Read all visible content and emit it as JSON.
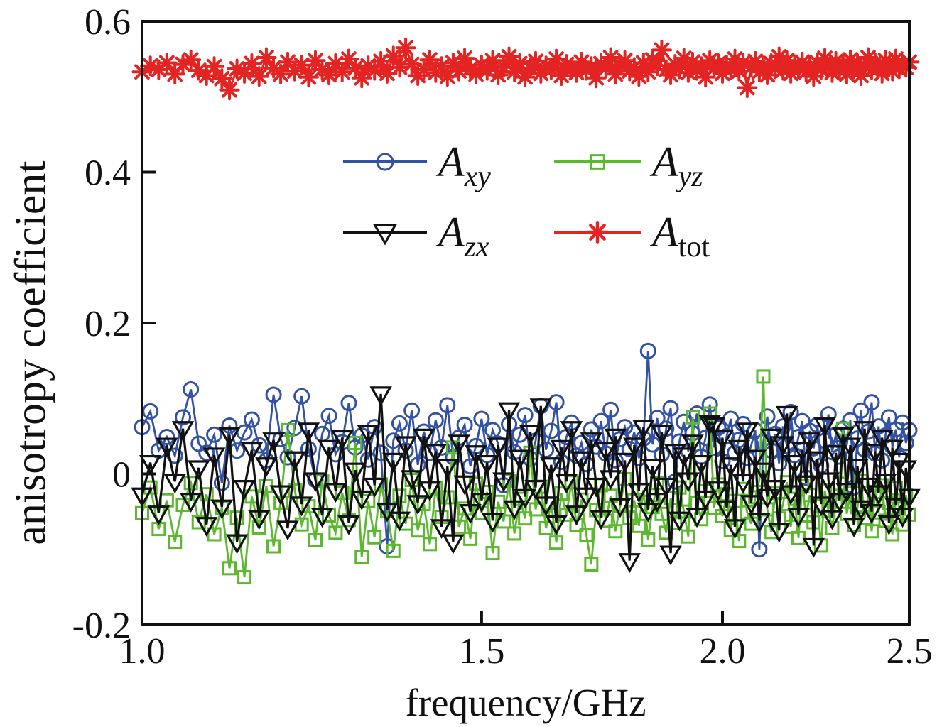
{
  "figure": {
    "background": "#ffffff",
    "frame_color": "#111111"
  },
  "chart_data": {
    "type": "line",
    "title": "",
    "xlabel": "frequency/GHz",
    "ylabel": "anisotropy coefficient",
    "x_scale": "log",
    "xlim": [
      1.0,
      2.5
    ],
    "ylim": [
      -0.2,
      0.6
    ],
    "x_tick_values": [
      1.0,
      1.5,
      2.0,
      2.5
    ],
    "x_tick_labels": [
      "1.0",
      "1.5",
      "2.0",
      "2.5"
    ],
    "y_tick_values": [
      -0.2,
      0,
      0.2,
      0.4,
      0.6
    ],
    "y_tick_labels": [
      "-0.2",
      "0",
      "0.2",
      "0.4",
      "0.6"
    ],
    "grid": false,
    "legend_position": "inside-upper-center",
    "legend_columns": 2,
    "x": [
      1.0,
      1.01,
      1.02,
      1.03,
      1.04,
      1.05,
      1.06,
      1.07,
      1.08,
      1.09,
      1.1,
      1.11,
      1.12,
      1.13,
      1.14,
      1.15,
      1.16,
      1.17,
      1.18,
      1.19,
      1.2,
      1.21,
      1.22,
      1.23,
      1.24,
      1.25,
      1.26,
      1.27,
      1.28,
      1.29,
      1.3,
      1.31,
      1.32,
      1.33,
      1.34,
      1.35,
      1.36,
      1.37,
      1.38,
      1.39,
      1.4,
      1.41,
      1.42,
      1.43,
      1.44,
      1.45,
      1.46,
      1.47,
      1.48,
      1.49,
      1.5,
      1.51,
      1.52,
      1.53,
      1.54,
      1.55,
      1.56,
      1.57,
      1.58,
      1.59,
      1.6,
      1.61,
      1.62,
      1.63,
      1.64,
      1.65,
      1.66,
      1.67,
      1.68,
      1.69,
      1.7,
      1.71,
      1.72,
      1.73,
      1.74,
      1.75,
      1.76,
      1.77,
      1.78,
      1.79,
      1.8,
      1.81,
      1.82,
      1.83,
      1.84,
      1.85,
      1.86,
      1.87,
      1.88,
      1.89,
      1.9,
      1.91,
      1.92,
      1.93,
      1.94,
      1.95,
      1.96,
      1.97,
      1.98,
      1.99,
      2.0,
      2.01,
      2.02,
      2.03,
      2.04,
      2.05,
      2.06,
      2.07,
      2.08,
      2.09,
      2.1,
      2.11,
      2.12,
      2.13,
      2.14,
      2.15,
      2.16,
      2.17,
      2.18,
      2.19,
      2.2,
      2.21,
      2.22,
      2.23,
      2.24,
      2.25,
      2.26,
      2.27,
      2.28,
      2.29,
      2.3,
      2.31,
      2.32,
      2.33,
      2.34,
      2.35,
      2.36,
      2.37,
      2.38,
      2.39,
      2.4,
      2.41,
      2.42,
      2.43,
      2.44,
      2.45,
      2.46,
      2.47,
      2.48,
      2.49,
      2.5
    ],
    "series": [
      {
        "name": "A_xy",
        "legend_main": "A",
        "legend_sub": "xy",
        "sub_italic": true,
        "color": "#3352a4",
        "marker": "circle",
        "values": [
          0.062,
          0.083,
          0.031,
          0.049,
          0.024,
          0.075,
          0.112,
          0.04,
          0.028,
          0.052,
          -0.012,
          0.064,
          0.031,
          0.055,
          0.072,
          0.038,
          0.018,
          0.105,
          0.046,
          0.022,
          0.061,
          0.103,
          0.033,
          -0.008,
          0.053,
          0.077,
          0.026,
          0.042,
          0.094,
          0.035,
          0.051,
          0.019,
          0.062,
          0.028,
          -0.096,
          0.044,
          0.067,
          0.031,
          0.084,
          0.012,
          0.056,
          0.028,
          0.071,
          0.035,
          0.091,
          0.022,
          0.048,
          0.065,
          0.01,
          0.037,
          0.073,
          0.025,
          0.058,
          0.04,
          -0.015,
          0.066,
          0.029,
          0.052,
          0.078,
          0.02,
          0.044,
          0.09,
          0.032,
          0.057,
          0.095,
          0.016,
          0.049,
          0.068,
          0.024,
          0.041,
          0.013,
          0.059,
          0.036,
          0.07,
          0.027,
          0.085,
          0.018,
          0.046,
          0.062,
          0.033,
          0.055,
          0.021,
          0.047,
          0.163,
          0.039,
          0.074,
          0.026,
          0.06,
          0.087,
          -0.01,
          0.043,
          0.069,
          0.03,
          0.054,
          0.08,
          0.023,
          0.048,
          0.092,
          0.035,
          0.061,
          0.017,
          0.05,
          0.073,
          0.028,
          0.045,
          0.066,
          0.021,
          0.038,
          0.058,
          -0.1,
          0.042,
          0.076,
          0.031,
          0.053,
          0.014,
          0.063,
          0.037,
          0.082,
          0.025,
          0.049,
          0.07,
          -0.005,
          0.057,
          0.034,
          0.065,
          0.011,
          0.044,
          0.079,
          0.029,
          0.052,
          0.023,
          0.06,
          0.038,
          0.071,
          -0.018,
          0.047,
          0.084,
          0.032,
          0.056,
          0.095,
          0.027,
          0.063,
          0.018,
          0.051,
          0.075,
          0.036,
          0.059,
          0.022,
          0.068,
          0.041,
          0.058
        ]
      },
      {
        "name": "A_yz",
        "legend_main": "A",
        "legend_sub": "yz",
        "sub_italic": true,
        "color": "#5cb82e",
        "marker": "square",
        "values": [
          -0.052,
          -0.018,
          -0.073,
          -0.035,
          -0.09,
          -0.041,
          -0.012,
          -0.064,
          -0.027,
          -0.08,
          -0.045,
          -0.125,
          -0.058,
          -0.137,
          -0.03,
          -0.071,
          -0.016,
          -0.096,
          -0.038,
          0.058,
          -0.022,
          -0.067,
          -0.043,
          -0.088,
          -0.01,
          -0.055,
          -0.078,
          -0.025,
          -0.061,
          0.041,
          -0.11,
          -0.036,
          -0.084,
          -0.014,
          -0.049,
          -0.102,
          -0.029,
          -0.066,
          -0.008,
          -0.075,
          -0.04,
          -0.093,
          -0.019,
          -0.057,
          -0.031,
          0.035,
          -0.07,
          -0.046,
          -0.086,
          -0.013,
          -0.052,
          -0.024,
          -0.105,
          -0.037,
          -0.063,
          -0.009,
          -0.079,
          -0.033,
          -0.059,
          0.028,
          -0.047,
          -0.017,
          -0.072,
          -0.039,
          -0.091,
          -0.026,
          -0.054,
          -0.011,
          -0.068,
          -0.034,
          -0.081,
          -0.12,
          -0.048,
          -0.015,
          -0.062,
          -0.029,
          -0.076,
          -0.042,
          -0.007,
          -0.058,
          -0.035,
          -0.069,
          -0.021,
          -0.087,
          -0.044,
          -0.012,
          -0.053,
          -0.078,
          -0.032,
          -0.065,
          -0.018,
          -0.05,
          -0.083,
          0.075,
          -0.038,
          -0.06,
          -0.023,
          0.08,
          -0.045,
          -0.014,
          -0.056,
          -0.027,
          -0.074,
          -0.036,
          -0.089,
          -0.02,
          -0.051,
          -0.066,
          -0.031,
          -0.008,
          0.129,
          -0.047,
          -0.077,
          -0.025,
          -0.059,
          -0.04,
          -0.011,
          -0.07,
          -0.033,
          -0.085,
          -0.016,
          -0.055,
          -0.028,
          -0.064,
          -0.042,
          -0.095,
          -0.022,
          -0.049,
          -0.072,
          -0.037,
          -0.013,
          0.06,
          -0.053,
          -0.026,
          -0.068,
          -0.044,
          -0.009,
          -0.058,
          -0.03,
          -0.076,
          -0.024,
          -0.051,
          -0.015,
          -0.062,
          -0.039,
          -0.08,
          -0.019,
          -0.046,
          -0.067,
          -0.028,
          -0.054
        ]
      },
      {
        "name": "A_zx",
        "legend_main": "A",
        "legend_sub": "zx",
        "sub_italic": true,
        "color": "#111111",
        "marker": "triangle-down",
        "values": [
          -0.028,
          0.015,
          -0.052,
          0.038,
          -0.01,
          0.06,
          -0.035,
          0.008,
          -0.067,
          0.025,
          -0.044,
          0.052,
          -0.09,
          -0.018,
          0.032,
          -0.058,
          0.012,
          0.045,
          -0.025,
          -0.072,
          0.02,
          -0.04,
          0.058,
          -0.008,
          -0.055,
          0.035,
          -0.022,
          0.048,
          -0.065,
          0.005,
          -0.032,
          0.055,
          -0.015,
          0.106,
          -0.048,
          0.018,
          -0.06,
          0.04,
          -0.005,
          -0.038,
          0.05,
          -0.02,
          0.03,
          -0.07,
          0.01,
          -0.09,
          0.042,
          -0.012,
          -0.05,
          0.028,
          -0.035,
          0.015,
          -0.062,
          0.038,
          -0.008,
          0.085,
          -0.045,
          0.022,
          -0.03,
          0.055,
          -0.018,
          0.09,
          -0.04,
          0.012,
          -0.065,
          0.035,
          -0.01,
          0.06,
          -0.052,
          0.02,
          -0.028,
          0.045,
          -0.015,
          -0.058,
          0.032,
          -0.005,
          0.05,
          -0.042,
          0.018,
          -0.115,
          0.038,
          -0.022,
          0.062,
          -0.048,
          0.01,
          -0.035,
          0.055,
          -0.015,
          -0.105,
          0.03,
          -0.06,
          0.025,
          -0.008,
          0.042,
          -0.055,
          0.015,
          -0.032,
          0.068,
          0.065,
          -0.02,
          0.048,
          -0.045,
          0.012,
          -0.07,
          0.035,
          -0.01,
          0.058,
          -0.038,
          0.022,
          -0.062,
          0.005,
          -0.03,
          0.05,
          -0.018,
          -0.075,
          0.04,
          0.08,
          -0.025,
          0.015,
          -0.055,
          0.032,
          -0.012,
          0.045,
          -0.095,
          0.02,
          -0.04,
          0.065,
          -0.008,
          -0.058,
          0.028,
          -0.035,
          0.052,
          -0.022,
          0.038,
          -0.068,
          0.01,
          -0.045,
          0.06,
          -0.015,
          -0.05,
          0.03,
          -0.025,
          0.048,
          -0.01,
          -0.065,
          0.035,
          -0.042,
          0.018,
          -0.055,
          0.008,
          -0.03
        ]
      },
      {
        "name": "A_tot",
        "legend_main": "A",
        "legend_sub": "tot",
        "sub_italic": false,
        "color": "#e32423",
        "marker": "asterisk",
        "values": [
          0.533,
          0.541,
          0.536,
          0.545,
          0.53,
          0.543,
          0.549,
          0.535,
          0.528,
          0.54,
          0.524,
          0.509,
          0.537,
          0.531,
          0.544,
          0.527,
          0.552,
          0.538,
          0.53,
          0.546,
          0.534,
          0.542,
          0.526,
          0.548,
          0.536,
          0.529,
          0.544,
          0.533,
          0.55,
          0.538,
          0.525,
          0.541,
          0.535,
          0.547,
          0.531,
          0.554,
          0.539,
          0.565,
          0.543,
          0.528,
          0.536,
          0.549,
          0.532,
          0.54,
          0.527,
          0.545,
          0.534,
          0.551,
          0.537,
          0.53,
          0.542,
          0.535,
          0.548,
          0.529,
          0.539,
          0.553,
          0.533,
          0.544,
          0.526,
          0.538,
          0.547,
          0.531,
          0.541,
          0.536,
          0.55,
          0.528,
          0.543,
          0.537,
          0.532,
          0.546,
          0.535,
          0.54,
          0.525,
          0.544,
          0.538,
          0.552,
          0.53,
          0.542,
          0.548,
          0.534,
          0.539,
          0.527,
          0.545,
          0.533,
          0.549,
          0.541,
          0.562,
          0.536,
          0.529,
          0.543,
          0.537,
          0.551,
          0.532,
          0.546,
          0.535,
          0.54,
          0.526,
          0.548,
          0.538,
          0.544,
          0.531,
          0.542,
          0.536,
          0.55,
          0.534,
          0.545,
          0.512,
          0.539,
          0.547,
          0.533,
          0.541,
          0.529,
          0.544,
          0.537,
          0.553,
          0.535,
          0.548,
          0.531,
          0.542,
          0.538,
          0.546,
          0.533,
          0.54,
          0.527,
          0.545,
          0.536,
          0.551,
          0.539,
          0.532,
          0.547,
          0.535,
          0.543,
          0.53,
          0.549,
          0.537,
          0.544,
          0.528,
          0.541,
          0.552,
          0.536,
          0.545,
          0.538,
          0.531,
          0.548,
          0.54,
          0.534,
          0.55,
          0.537,
          0.543,
          0.539,
          0.546
        ]
      }
    ]
  }
}
